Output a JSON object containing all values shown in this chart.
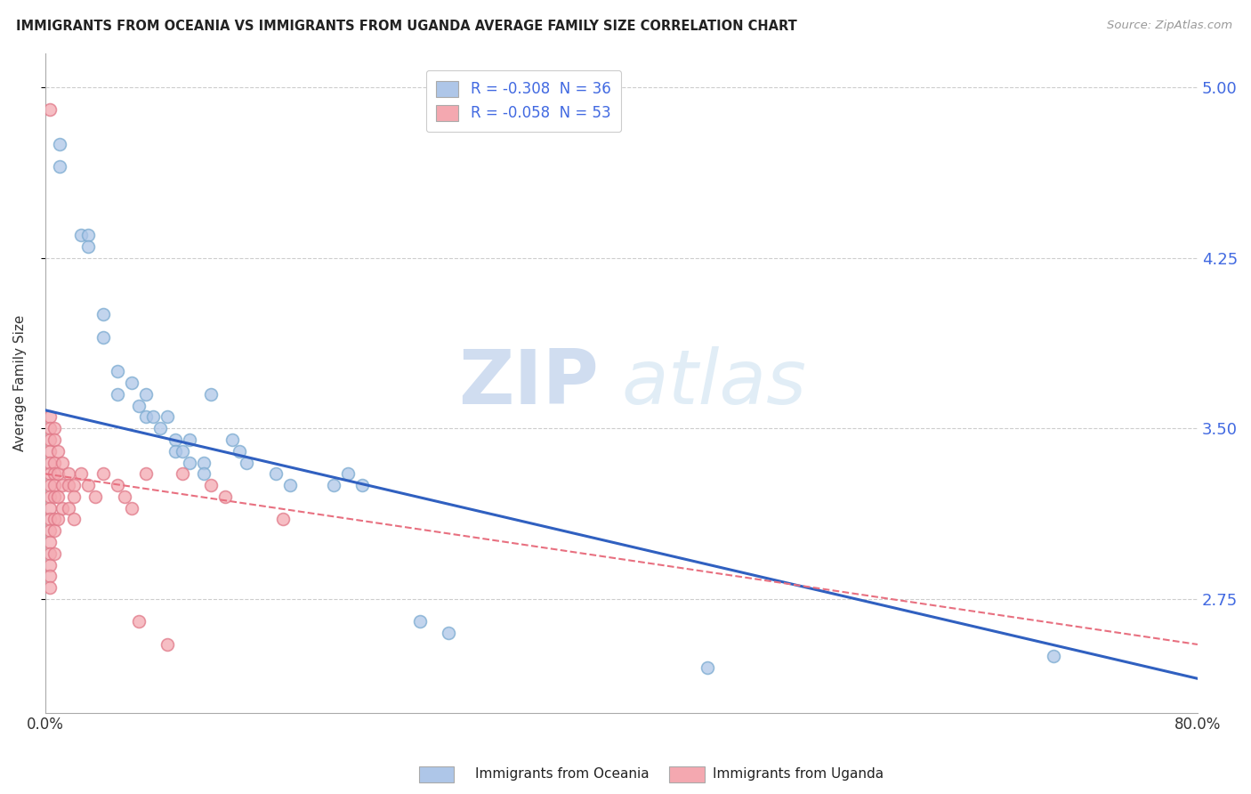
{
  "title": "IMMIGRANTS FROM OCEANIA VS IMMIGRANTS FROM UGANDA AVERAGE FAMILY SIZE CORRELATION CHART",
  "source": "Source: ZipAtlas.com",
  "ylabel": "Average Family Size",
  "xlabel_ticks": [
    "0.0%",
    "80.0%"
  ],
  "xlim": [
    0.0,
    0.8
  ],
  "ylim": [
    2.25,
    5.15
  ],
  "yticks": [
    2.75,
    3.5,
    4.25,
    5.0
  ],
  "ytick_color": "#4169e1",
  "xtick_color": "#333333",
  "legend_r1": "R = -0.308  N = 36",
  "legend_r2": "R = -0.058  N = 53",
  "legend_r_color": "#4169e1",
  "oceania_color": "#aec6e8",
  "oceania_edge": "#7aaad0",
  "uganda_color": "#f4a8b0",
  "uganda_edge": "#e07888",
  "trendline_oceania_color": "#3060c0",
  "trendline_uganda_color": "#e87080",
  "watermark_zip": "ZIP",
  "watermark_atlas": "atlas",
  "background_color": "#ffffff",
  "grid_color": "#c8c8c8",
  "oceania_x": [
    0.01,
    0.01,
    0.025,
    0.03,
    0.03,
    0.04,
    0.04,
    0.05,
    0.05,
    0.06,
    0.065,
    0.07,
    0.07,
    0.075,
    0.08,
    0.085,
    0.09,
    0.09,
    0.095,
    0.1,
    0.1,
    0.11,
    0.11,
    0.115,
    0.13,
    0.135,
    0.14,
    0.16,
    0.17,
    0.2,
    0.21,
    0.22,
    0.26,
    0.28,
    0.46,
    0.7
  ],
  "oceania_y": [
    4.75,
    4.65,
    4.35,
    4.35,
    4.3,
    3.9,
    4.0,
    3.75,
    3.65,
    3.7,
    3.6,
    3.65,
    3.55,
    3.55,
    3.5,
    3.55,
    3.45,
    3.4,
    3.4,
    3.45,
    3.35,
    3.35,
    3.3,
    3.65,
    3.45,
    3.4,
    3.35,
    3.3,
    3.25,
    3.25,
    3.3,
    3.25,
    2.65,
    2.6,
    2.45,
    2.5
  ],
  "uganda_x": [
    0.003,
    0.003,
    0.003,
    0.003,
    0.003,
    0.003,
    0.003,
    0.003,
    0.003,
    0.003,
    0.003,
    0.003,
    0.003,
    0.003,
    0.003,
    0.003,
    0.003,
    0.006,
    0.006,
    0.006,
    0.006,
    0.006,
    0.006,
    0.006,
    0.006,
    0.006,
    0.009,
    0.009,
    0.009,
    0.009,
    0.012,
    0.012,
    0.012,
    0.016,
    0.016,
    0.016,
    0.02,
    0.02,
    0.02,
    0.025,
    0.03,
    0.035,
    0.04,
    0.05,
    0.055,
    0.06,
    0.065,
    0.07,
    0.085,
    0.095,
    0.115,
    0.125,
    0.165
  ],
  "uganda_y": [
    4.9,
    3.55,
    3.5,
    3.45,
    3.4,
    3.35,
    3.3,
    3.25,
    3.2,
    3.15,
    3.1,
    3.05,
    3.0,
    2.95,
    2.9,
    2.85,
    2.8,
    3.5,
    3.45,
    3.35,
    3.3,
    3.25,
    3.2,
    3.1,
    3.05,
    2.95,
    3.4,
    3.3,
    3.2,
    3.1,
    3.35,
    3.25,
    3.15,
    3.3,
    3.25,
    3.15,
    3.25,
    3.2,
    3.1,
    3.3,
    3.25,
    3.2,
    3.3,
    3.25,
    3.2,
    3.15,
    2.65,
    3.3,
    2.55,
    3.3,
    3.25,
    3.2,
    3.1
  ],
  "trendline_oceania_x0": 0.0,
  "trendline_oceania_y0": 3.58,
  "trendline_oceania_x1": 0.8,
  "trendline_oceania_y1": 2.4,
  "trendline_uganda_x0": 0.0,
  "trendline_uganda_y0": 3.3,
  "trendline_uganda_x1": 0.8,
  "trendline_uganda_y1": 2.55
}
